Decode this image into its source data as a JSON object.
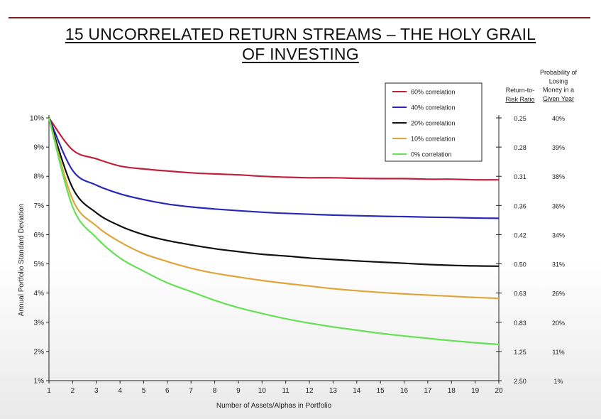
{
  "title_line1": "15 UNCORRELATED RETURN STREAMS – THE HOLY GRAIL",
  "title_line2": "OF INVESTING",
  "chart_data": {
    "type": "line",
    "xlabel": "Number of Assets/Alphas in Portfolio",
    "ylabel": "Annual Portfolio Standard Deviation",
    "x_ticks": [
      "1",
      "2",
      "3",
      "4",
      "5",
      "6",
      "7",
      "8",
      "9",
      "10",
      "11",
      "12",
      "13",
      "14",
      "15",
      "16",
      "17",
      "18",
      "19",
      "20"
    ],
    "y_ticks": [
      "10%",
      "9%",
      "8%",
      "7%",
      "6%",
      "5%",
      "4%",
      "3%",
      "2%",
      "1%"
    ],
    "xlim": [
      1,
      20
    ],
    "ylim": [
      1,
      10
    ],
    "x": [
      1,
      2,
      3,
      4,
      5,
      6,
      7,
      8,
      9,
      10,
      11,
      12,
      13,
      14,
      15,
      16,
      17,
      18,
      19,
      20
    ],
    "series": [
      {
        "name": "60% correlation",
        "color": "#c0203a",
        "values": [
          10.0,
          8.9,
          8.6,
          8.35,
          8.25,
          8.18,
          8.12,
          8.08,
          8.05,
          8.0,
          7.97,
          7.95,
          7.95,
          7.93,
          7.92,
          7.92,
          7.9,
          7.9,
          7.88,
          7.88
        ]
      },
      {
        "name": "40% correlation",
        "color": "#2a28b8",
        "values": [
          10.0,
          8.2,
          7.7,
          7.4,
          7.2,
          7.05,
          6.95,
          6.88,
          6.82,
          6.77,
          6.73,
          6.7,
          6.67,
          6.65,
          6.63,
          6.62,
          6.6,
          6.59,
          6.57,
          6.56
        ]
      },
      {
        "name": "20% correlation",
        "color": "#111111",
        "values": [
          10.0,
          7.6,
          6.75,
          6.3,
          6.0,
          5.8,
          5.65,
          5.52,
          5.42,
          5.33,
          5.27,
          5.2,
          5.15,
          5.1,
          5.06,
          5.02,
          4.98,
          4.95,
          4.93,
          4.92
        ]
      },
      {
        "name": "10% correlation",
        "color": "#e0a53a",
        "values": [
          10.0,
          7.2,
          6.3,
          5.75,
          5.35,
          5.08,
          4.85,
          4.68,
          4.55,
          4.43,
          4.33,
          4.24,
          4.15,
          4.08,
          4.02,
          3.97,
          3.93,
          3.89,
          3.85,
          3.82
        ]
      },
      {
        "name": "0% correlation",
        "color": "#66e055",
        "values": [
          10.0,
          6.95,
          5.9,
          5.2,
          4.75,
          4.35,
          4.05,
          3.75,
          3.5,
          3.3,
          3.12,
          2.97,
          2.84,
          2.73,
          2.62,
          2.53,
          2.45,
          2.37,
          2.3,
          2.24
        ]
      }
    ],
    "legend_position": "top-right",
    "right_table": {
      "ratio_header": [
        "Return-to-",
        "Risk Ratio"
      ],
      "prob_header": [
        "Probability of",
        "Losing",
        "Money in a",
        "Given Year"
      ],
      "rows": [
        {
          "ratio": "0.25",
          "prob": "40%"
        },
        {
          "ratio": "0.28",
          "prob": "39%"
        },
        {
          "ratio": "0.31",
          "prob": "38%"
        },
        {
          "ratio": "0.36",
          "prob": "36%"
        },
        {
          "ratio": "0.42",
          "prob": "34%"
        },
        {
          "ratio": "0.50",
          "prob": "31%"
        },
        {
          "ratio": "0.63",
          "prob": "26%"
        },
        {
          "ratio": "0.83",
          "prob": "20%"
        },
        {
          "ratio": "1.25",
          "prob": "11%"
        },
        {
          "ratio": "2.50",
          "prob": "1%"
        }
      ]
    }
  }
}
